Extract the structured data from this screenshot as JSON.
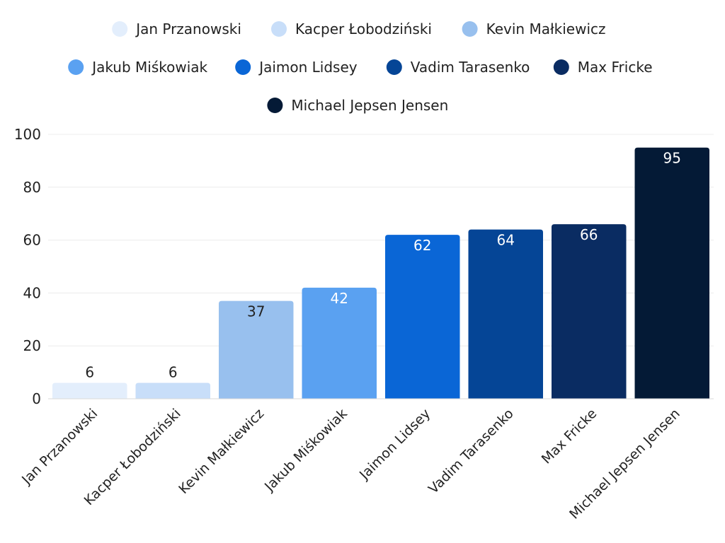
{
  "chart_data": {
    "type": "bar",
    "title": "",
    "xlabel": "",
    "ylabel": "",
    "ylim": [
      0,
      100
    ],
    "yticks": [
      0,
      20,
      40,
      60,
      80,
      100
    ],
    "grid": true,
    "legend_position": "top-center",
    "categories": [
      "Jan Przanowski",
      "Kacper Łobodziński",
      "Kevin Małkiewicz",
      "Jakub Miśkowiak",
      "Jaimon Lidsey",
      "Vadim Tarasenko",
      "Max Fricke",
      "Michael Jepsen Jensen"
    ],
    "values": [
      6,
      6,
      37,
      42,
      62,
      64,
      66,
      95
    ],
    "colors": [
      "#e3eefc",
      "#c8def9",
      "#98c0ee",
      "#5aa1f1",
      "#0a66d6",
      "#054596",
      "#0a2c62",
      "#041a36"
    ],
    "label_colors": [
      "#222222",
      "#222222",
      "#222222",
      "#ffffff",
      "#ffffff",
      "#ffffff",
      "#ffffff",
      "#ffffff"
    ]
  }
}
